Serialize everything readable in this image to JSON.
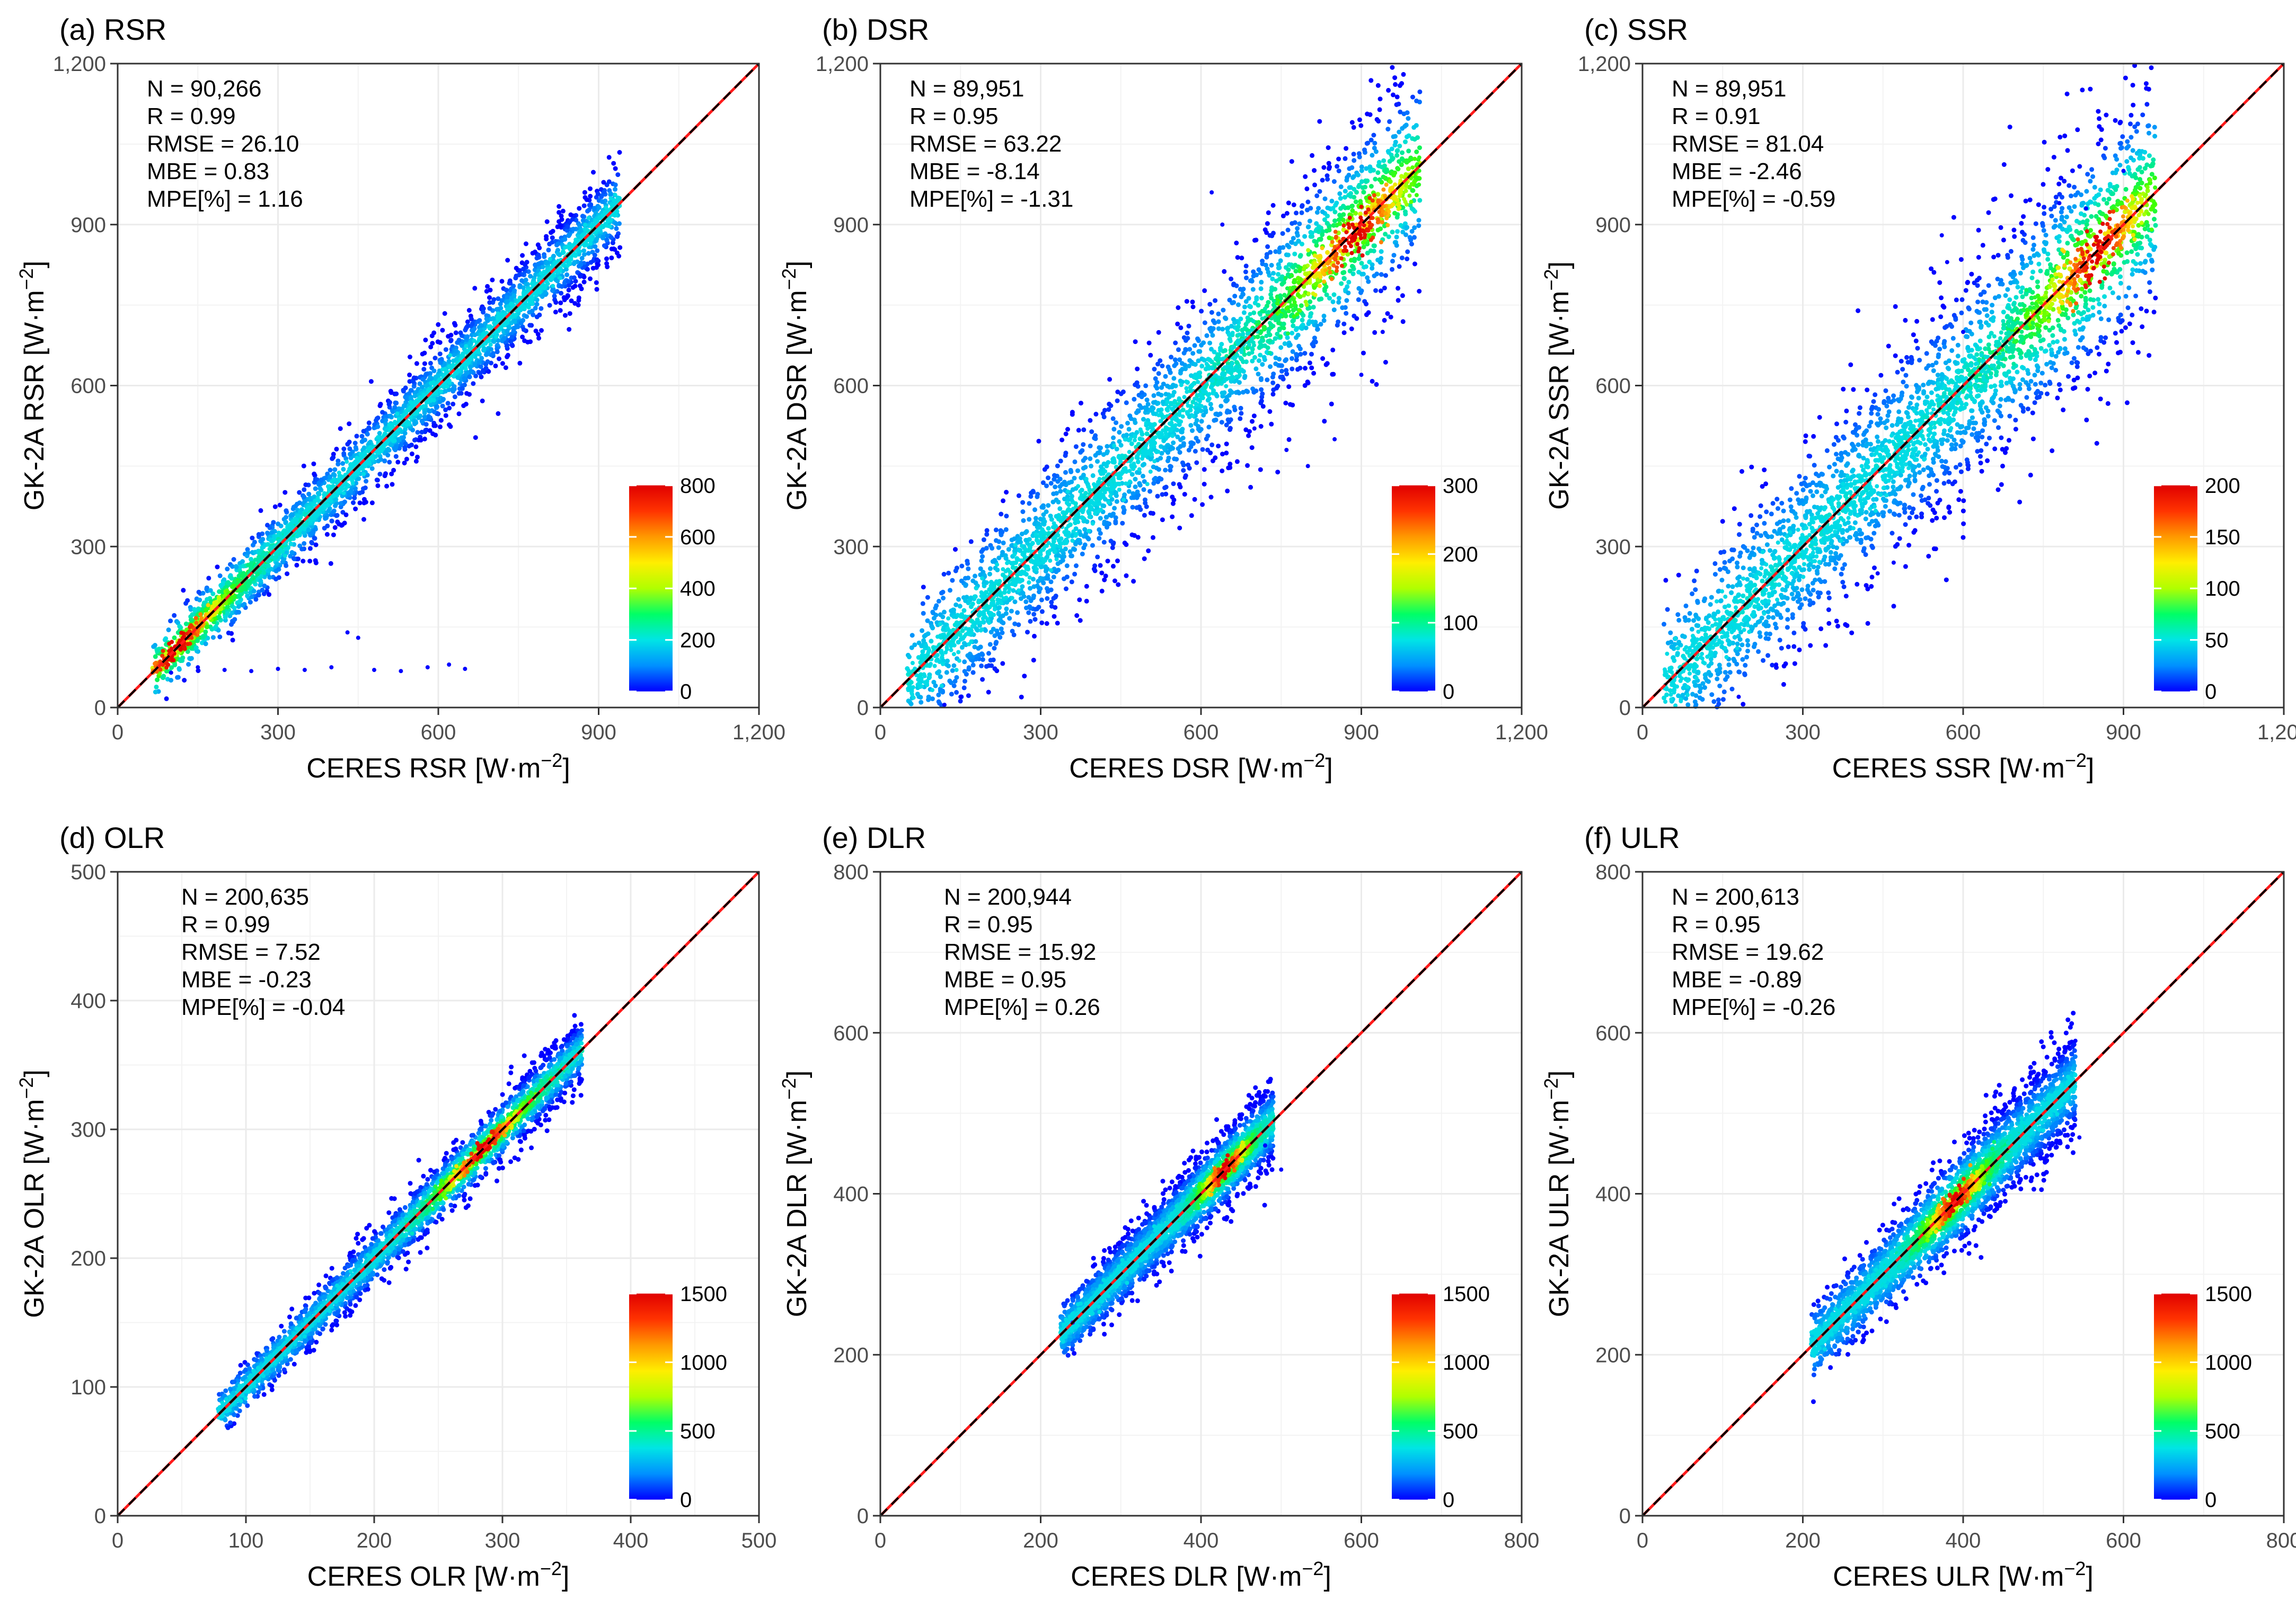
{
  "colors": {
    "line_identity": "#000000",
    "line_fit": "#ff1a1a",
    "grid": "#ebebeb",
    "axis": "#333333"
  },
  "colorbar_colors": [
    "#0000ff",
    "#0090ff",
    "#00e5e5",
    "#00ff66",
    "#b0ff00",
    "#ffee00",
    "#ff9900",
    "#ff3300",
    "#e00000"
  ],
  "chart_data": [
    {
      "type": "scatter",
      "panel_label": "(a) RSR",
      "xlabel": "CERES RSR",
      "ylabel": "GK-2A RSR",
      "unit_lead": "[W·m",
      "unit_exp": "−2",
      "unit_tail": "]",
      "xlim": [
        0,
        1200
      ],
      "ylim": [
        0,
        1200
      ],
      "ticks": [
        0,
        300,
        600,
        900,
        1200
      ],
      "tick_labels": [
        "0",
        "300",
        "600",
        "900",
        "1,200"
      ],
      "stats": [
        "N = 90,266",
        "R =  0.99",
        "RMSE =  26.10",
        "MBE =  0.83",
        "MPE[%] =  1.16"
      ],
      "colorbar": {
        "max": 800,
        "ticks": [
          0,
          200,
          400,
          600,
          800
        ],
        "tick_labels": [
          "0",
          "200",
          "400",
          "600",
          "800"
        ]
      },
      "density": {
        "x_range": [
          65,
          940
        ],
        "slope": 1.0,
        "offset": 0,
        "spread": 38,
        "peak_x": 110
      },
      "outliers": [
        [
          100,
          65
        ],
        [
          150,
          75
        ],
        [
          200,
          70
        ],
        [
          250,
          68
        ],
        [
          300,
          72
        ],
        [
          350,
          70
        ],
        [
          400,
          75
        ],
        [
          430,
          140
        ],
        [
          450,
          130
        ],
        [
          480,
          70
        ],
        [
          530,
          68
        ],
        [
          580,
          75
        ],
        [
          620,
          80
        ],
        [
          650,
          72
        ]
      ]
    },
    {
      "type": "scatter",
      "panel_label": "(b) DSR",
      "xlabel": "CERES DSR",
      "ylabel": "GK-2A DSR",
      "unit_lead": "[W·m",
      "unit_exp": "−2",
      "unit_tail": "]",
      "xlim": [
        0,
        1200
      ],
      "ylim": [
        0,
        1200
      ],
      "ticks": [
        0,
        300,
        600,
        900,
        1200
      ],
      "tick_labels": [
        "0",
        "300",
        "600",
        "900",
        "1,200"
      ],
      "stats": [
        "N = 89,951",
        "R =  0.95",
        "RMSE =  63.22",
        "MBE =  -8.14",
        "MPE[%] =  -1.31"
      ],
      "colorbar": {
        "max": 300,
        "ticks": [
          0,
          100,
          200,
          300
        ],
        "tick_labels": [
          "0",
          "100",
          "200",
          "300"
        ]
      },
      "density": {
        "x_range": [
          50,
          1010
        ],
        "slope": 1.0,
        "offset": -8,
        "spread": 85,
        "peak_x": 890
      },
      "outliers": [
        [
          620,
          960
        ],
        [
          640,
          900
        ],
        [
          700,
          520
        ],
        [
          760,
          480
        ],
        [
          800,
          450
        ],
        [
          850,
          500
        ],
        [
          900,
          620
        ],
        [
          940,
          700
        ],
        [
          120,
          5
        ],
        [
          150,
          20
        ]
      ]
    },
    {
      "type": "scatter",
      "panel_label": "(c) SSR",
      "xlabel": "CERES SSR",
      "ylabel": "GK-2A SSR",
      "unit_lead": "[W·m",
      "unit_exp": "−2",
      "unit_tail": "]",
      "xlim": [
        0,
        1200
      ],
      "ylim": [
        0,
        1200
      ],
      "ticks": [
        0,
        300,
        600,
        900,
        1200
      ],
      "tick_labels": [
        "0",
        "300",
        "600",
        "900",
        "1,200"
      ],
      "stats": [
        "N = 89,951",
        "R =  0.91",
        "RMSE =  81.04",
        "MBE =  -2.46",
        "MPE[%] =  -0.59"
      ],
      "colorbar": {
        "max": 200,
        "ticks": [
          0,
          50,
          100,
          150,
          200
        ],
        "tick_labels": [
          "0",
          "50",
          "100",
          "150",
          "200"
        ]
      },
      "density": {
        "x_range": [
          40,
          960
        ],
        "slope": 1.0,
        "offset": -3,
        "spread": 100,
        "peak_x": 850
      },
      "outliers": [
        [
          560,
          880
        ],
        [
          570,
          830
        ],
        [
          600,
          700
        ],
        [
          780,
          940
        ],
        [
          830,
          930
        ],
        [
          900,
          1000
        ],
        [
          440,
          250
        ],
        [
          470,
          270
        ],
        [
          250,
          80
        ],
        [
          180,
          20
        ]
      ]
    },
    {
      "type": "scatter",
      "panel_label": "(d) OLR",
      "xlabel": "CERES OLR",
      "ylabel": "GK-2A OLR",
      "unit_lead": "[W·m",
      "unit_exp": "−2",
      "unit_tail": "]",
      "xlim": [
        0,
        500
      ],
      "ylim": [
        0,
        500
      ],
      "ticks": [
        0,
        100,
        200,
        300,
        400,
        500
      ],
      "tick_labels": [
        "0",
        "100",
        "200",
        "300",
        "400",
        "500"
      ],
      "stats": [
        "N = 200,635",
        "R =  0.99",
        "RMSE =  7.52",
        "MBE =  -0.23",
        "MPE[%] =  -0.04"
      ],
      "colorbar": {
        "max": 1500,
        "ticks": [
          0,
          500,
          1000,
          1500
        ],
        "tick_labels": [
          "0",
          "500",
          "1000",
          "1500"
        ]
      },
      "density": {
        "x_range": [
          78,
          362
        ],
        "slope": 1.0,
        "offset": 0,
        "spread": 11,
        "peak_x": 285
      },
      "outliers": []
    },
    {
      "type": "scatter",
      "panel_label": "(e) DLR",
      "xlabel": "CERES DLR",
      "ylabel": "GK-2A DLR",
      "unit_lead": "[W·m",
      "unit_exp": "−2",
      "unit_tail": "]",
      "xlim": [
        0,
        800
      ],
      "ylim": [
        0,
        800
      ],
      "ticks": [
        0,
        200,
        400,
        600,
        800
      ],
      "tick_labels": [
        "0",
        "200",
        "400",
        "600",
        "800"
      ],
      "stats": [
        "N = 200,944",
        "R =  0.95",
        "RMSE =  15.92",
        "MBE =  0.95",
        "MPE[%] =  0.26"
      ],
      "colorbar": {
        "max": 1500,
        "ticks": [
          0,
          500,
          1000,
          1500
        ],
        "tick_labels": [
          "0",
          "500",
          "1000",
          "1500"
        ]
      },
      "density": {
        "x_range": [
          225,
          490
        ],
        "slope": 1.0,
        "offset": 1,
        "spread": 22,
        "peak_x": 430
      },
      "outliers": [
        [
          500,
          430
        ],
        [
          480,
          460
        ],
        [
          240,
          240
        ]
      ]
    },
    {
      "type": "scatter",
      "panel_label": "(f) ULR",
      "xlabel": "CERES ULR",
      "ylabel": "GK-2A ULR",
      "unit_lead": "[W·m",
      "unit_exp": "−2",
      "unit_tail": "]",
      "xlim": [
        0,
        800
      ],
      "ylim": [
        0,
        800
      ],
      "ticks": [
        0,
        200,
        400,
        600,
        800
      ],
      "tick_labels": [
        "0",
        "200",
        "400",
        "600",
        "800"
      ],
      "stats": [
        "N = 200,613",
        "R =  0.95",
        "RMSE =  19.62",
        "MBE =  -0.89",
        "MPE[%] =  -0.26"
      ],
      "colorbar": {
        "max": 1500,
        "ticks": [
          0,
          500,
          1000,
          1500
        ],
        "tick_labels": [
          "0",
          "500",
          "1000",
          "1500"
        ]
      },
      "density": {
        "x_range": [
          210,
          540
        ],
        "slope": 1.0,
        "offset": 0,
        "spread": 28,
        "peak_x": 390
      },
      "outliers": [
        [
          540,
          590
        ],
        [
          545,
          470
        ]
      ]
    }
  ]
}
